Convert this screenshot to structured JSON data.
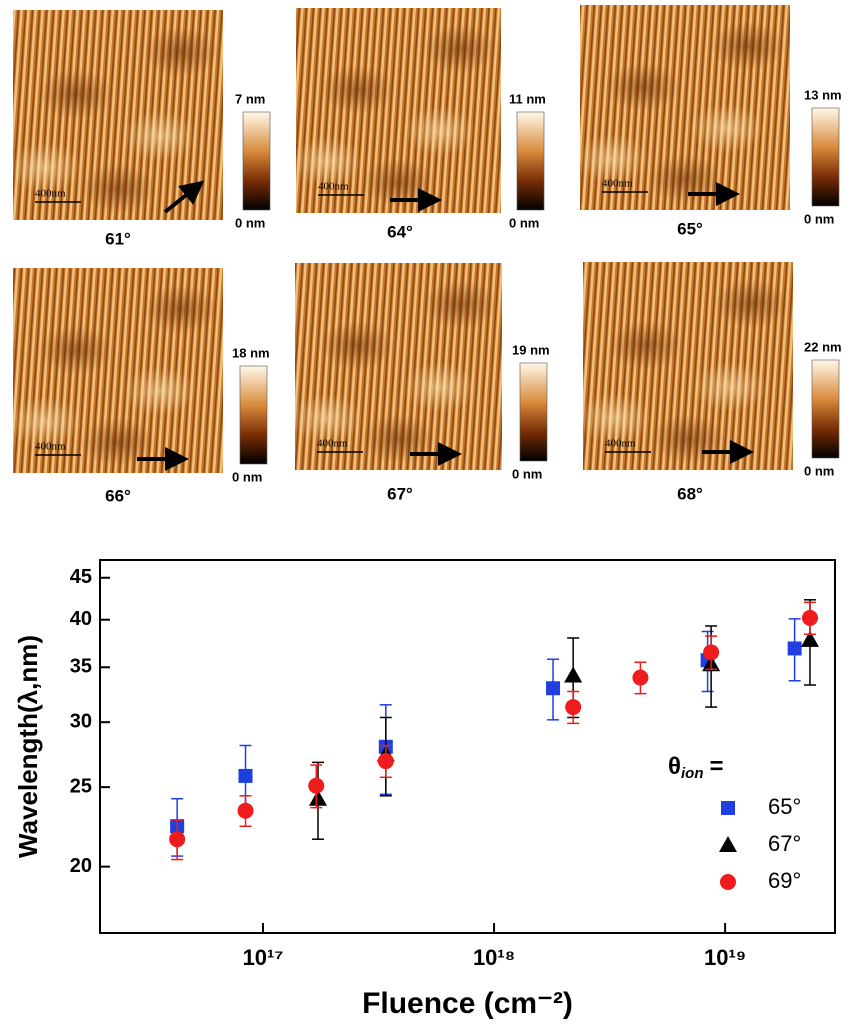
{
  "panels": [
    {
      "angle": "61°",
      "max_label": "7 nm",
      "min_label": "0 nm",
      "scale_bar": "400nm"
    },
    {
      "angle": "64°",
      "max_label": "11 nm",
      "min_label": "0 nm",
      "scale_bar": "400nm"
    },
    {
      "angle": "65°",
      "max_label": "13  nm",
      "min_label": "0 nm",
      "scale_bar": "400nm"
    },
    {
      "angle": "66°",
      "max_label": "18 nm",
      "min_label": "0 nm",
      "scale_bar": "400nm"
    },
    {
      "angle": "67°",
      "max_label": "19 nm",
      "min_label": "0 nm",
      "scale_bar": "400nm"
    },
    {
      "angle": "68°",
      "max_label": "22 nm",
      "min_label": "0 nm",
      "scale_bar": "400nm"
    }
  ],
  "chart_data": {
    "type": "scatter",
    "x_label": "Fluence (cm⁻²)",
    "y_label": "Wavelength(λ,nm)",
    "xscale": "log",
    "yscale": "log",
    "xlim": [
      1.97e+16,
      2.99e+19
    ],
    "xticks": [
      {
        "value": 1e+17,
        "label": "10¹⁷"
      },
      {
        "value": 1e+18,
        "label": "10¹⁸"
      },
      {
        "value": 1e+19,
        "label": "10¹⁹"
      }
    ],
    "ylim": [
      16.6,
      47.3
    ],
    "yticks": [
      20,
      25,
      30,
      35,
      40,
      45
    ],
    "legend_title": {
      "symbol": "θ",
      "subscript": "ion",
      "suffix": "="
    },
    "legend_position": "lower right",
    "series": [
      {
        "name": "65°",
        "color": "#1f3fe0",
        "marker": "square",
        "x": [
          4.25e+16,
          8.4e+16,
          3.4e+17,
          1.8e+18,
          8.4e+18,
          2e+19
        ],
        "values": [
          22.4,
          25.8,
          28.0,
          33.0,
          35.7,
          36.9
        ],
        "errors": [
          1.8,
          2.3,
          3.5,
          2.8,
          3.0,
          3.2
        ]
      },
      {
        "name": "67°",
        "color": "#000000",
        "marker": "triangle",
        "x": [
          1.73e+17,
          3.4e+17,
          2.2e+18,
          8.7e+18,
          2.33e+19
        ],
        "values": [
          24.2,
          27.4,
          34.2,
          35.3,
          37.8
        ],
        "errors": [
          2.6,
          3.0,
          3.8,
          4.0,
          4.5
        ]
      },
      {
        "name": "69°",
        "color": "#ee1c1c",
        "marker": "circle",
        "x": [
          4.25e+16,
          8.4e+16,
          1.7e+17,
          3.4e+17,
          2.2e+18,
          4.3e+18,
          8.7e+18,
          2.33e+19
        ],
        "values": [
          21.6,
          23.4,
          25.1,
          26.9,
          31.3,
          34.0,
          36.5,
          40.2
        ],
        "errors": [
          1.2,
          1.0,
          1.5,
          1.2,
          1.4,
          1.5,
          1.7,
          1.8
        ]
      }
    ]
  }
}
